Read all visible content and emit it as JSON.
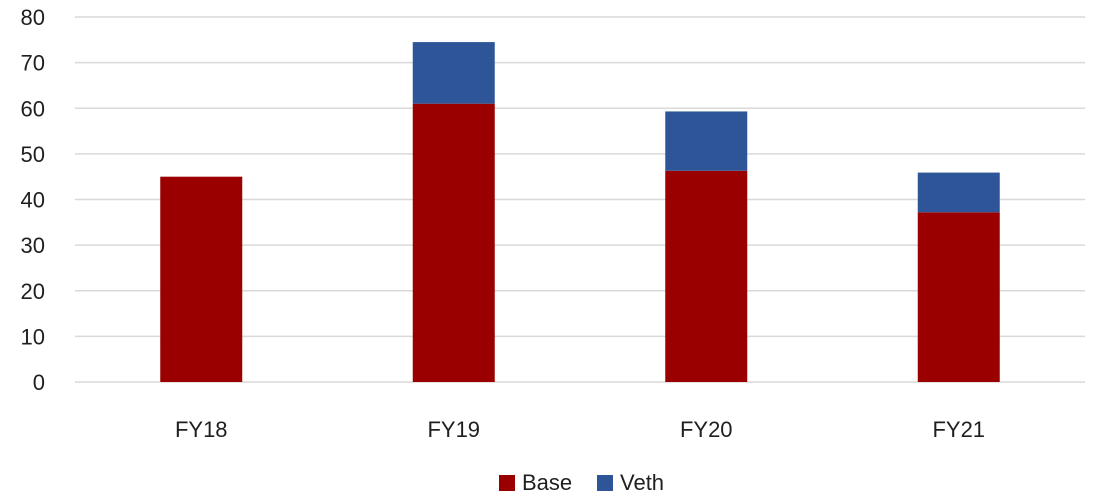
{
  "chart_data": {
    "type": "bar",
    "stacked": true,
    "categories": [
      "FY18",
      "FY19",
      "FY20",
      "FY21"
    ],
    "series": [
      {
        "name": "Base",
        "color": "#9B0000",
        "values": [
          45,
          61,
          46.3,
          37.2
        ]
      },
      {
        "name": "Veth",
        "color": "#2E5597",
        "values": [
          0,
          13.5,
          13,
          8.7
        ]
      }
    ],
    "yticks": [
      0,
      10,
      20,
      30,
      40,
      50,
      60,
      70,
      80
    ],
    "ylim": [
      0,
      80
    ],
    "grid": true,
    "legend": "bottom-center"
  }
}
